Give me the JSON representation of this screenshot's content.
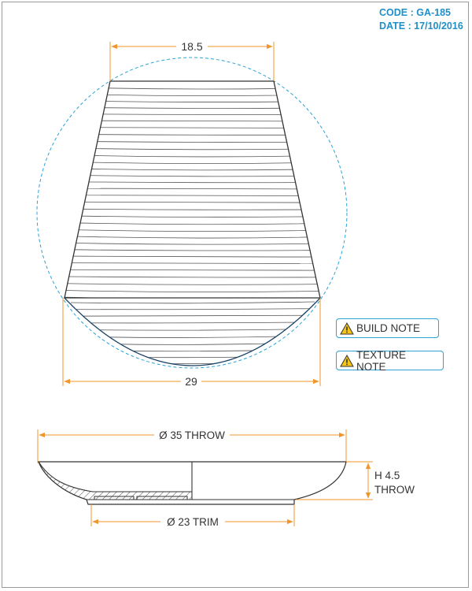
{
  "meta": {
    "code": "CODE : GA-185",
    "date": "DATE : 17/10/2016"
  },
  "top_view": {
    "top_width": "18.5",
    "bottom_width": "29"
  },
  "profile_view": {
    "diameter_throw": "Ø 35 THROW",
    "height_line1": "H 4.5",
    "height_line2": "THROW",
    "diameter_trim": "Ø 23 TRIM"
  },
  "notes": {
    "build": "BUILD NOTE",
    "texture": "TEXTURE NOTE"
  },
  "icons": {
    "note": "warning-icon"
  },
  "colors": {
    "dimension": "#f0962e",
    "accent": "#1f8fc8",
    "circle": "#2aa3d6",
    "warning": "#f5c518"
  }
}
